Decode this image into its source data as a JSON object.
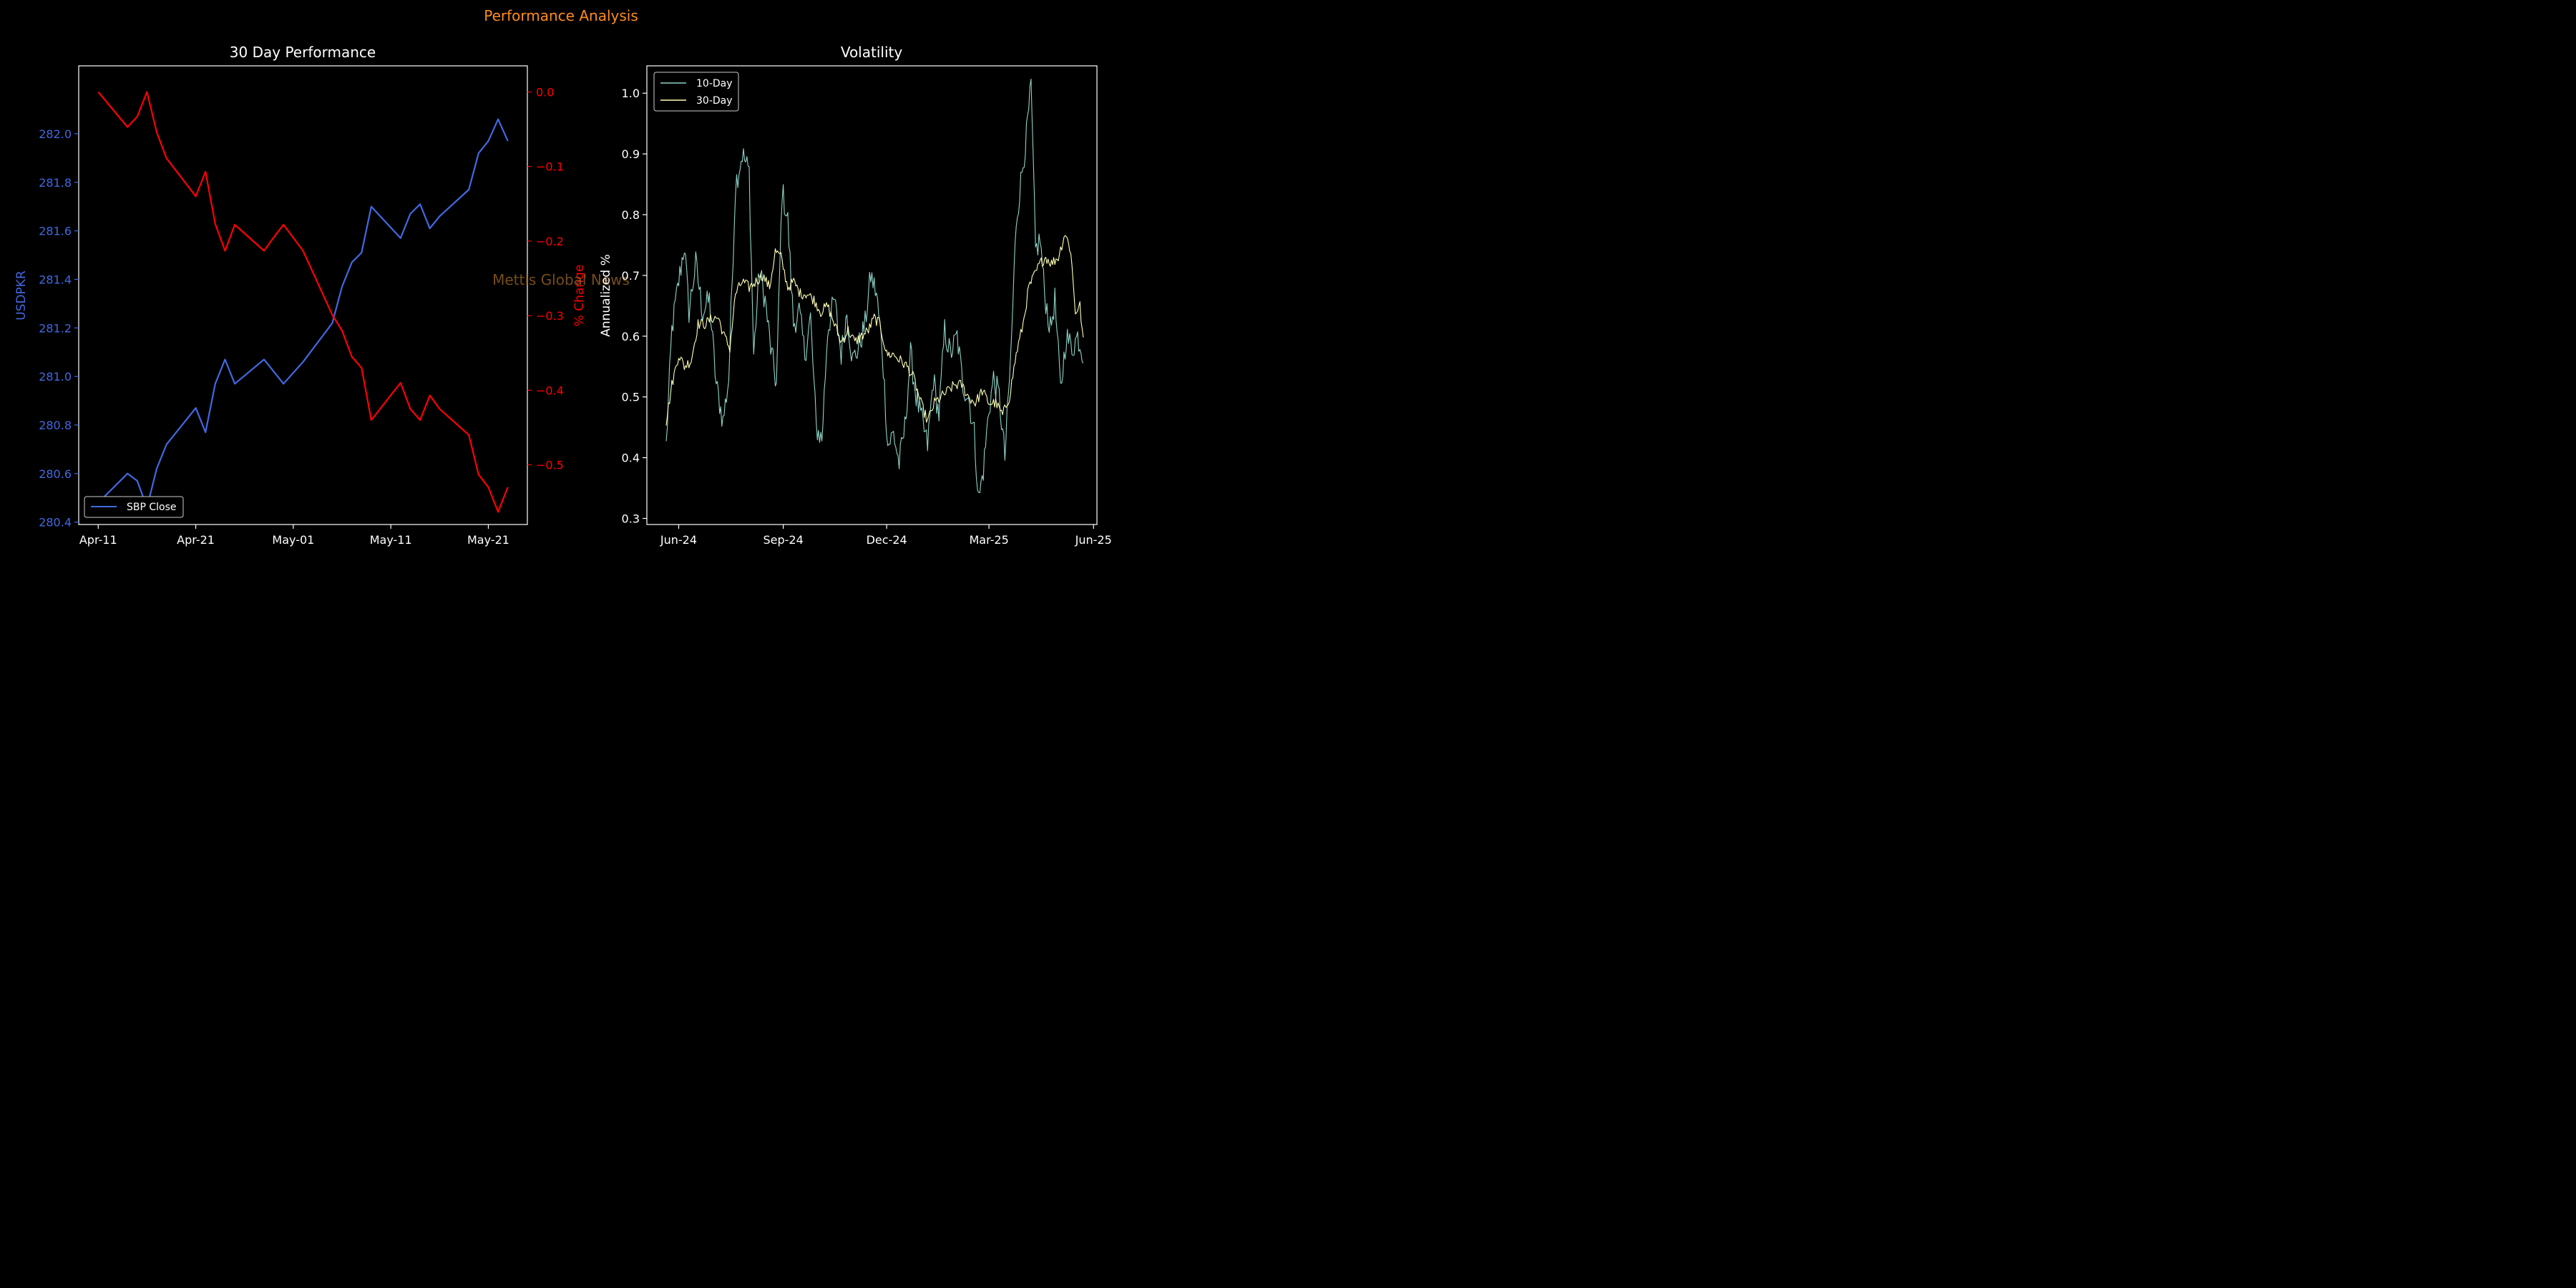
{
  "figure": {
    "suptitle": "Performance Analysis",
    "watermark": "Mettis Global News"
  },
  "chart_data": [
    {
      "type": "line",
      "title": "30 Day Performance",
      "xlabel": "",
      "ylabel": "USDPKR",
      "ylabel_right": "% Change",
      "dates": [
        "2025-04-11",
        "2025-04-14",
        "2025-04-15",
        "2025-04-16",
        "2025-04-17",
        "2025-04-18",
        "2025-04-21",
        "2025-04-22",
        "2025-04-23",
        "2025-04-24",
        "2025-04-25",
        "2025-04-28",
        "2025-04-29",
        "2025-04-30",
        "2025-05-02",
        "2025-05-05",
        "2025-05-06",
        "2025-05-07",
        "2025-05-08",
        "2025-05-09",
        "2025-05-12",
        "2025-05-13",
        "2025-05-14",
        "2025-05-15",
        "2025-05-16",
        "2025-05-19",
        "2025-05-20",
        "2025-05-21",
        "2025-05-22",
        "2025-05-23"
      ],
      "series": [
        {
          "name": "SBP Close",
          "axis": "left",
          "color": "#4169e1",
          "values": [
            280.48,
            280.6,
            280.57,
            280.46,
            280.62,
            280.72,
            280.87,
            280.77,
            280.97,
            281.07,
            280.97,
            281.07,
            281.02,
            280.97,
            281.06,
            281.22,
            281.37,
            281.47,
            281.51,
            281.7,
            281.57,
            281.67,
            281.71,
            281.61,
            281.66,
            281.77,
            281.92,
            281.97,
            282.06,
            281.97
          ]
        },
        {
          "axis": "right",
          "color": "#ff0000",
          "values": [
            0.0,
            -0.047,
            -0.033,
            0.0,
            -0.054,
            -0.089,
            -0.14,
            -0.107,
            -0.177,
            -0.213,
            -0.178,
            -0.213,
            -0.195,
            -0.178,
            -0.213,
            -0.299,
            -0.32,
            -0.355,
            -0.37,
            -0.44,
            -0.39,
            -0.425,
            -0.44,
            -0.407,
            -0.425,
            -0.46,
            -0.513,
            -0.53,
            -0.563,
            -0.53
          ]
        }
      ],
      "ylim": [
        280.39,
        282.28
      ],
      "ylim_right": [
        -0.58,
        0.035
      ],
      "yticks": [
        "280.4",
        "280.6",
        "280.8",
        "281.0",
        "281.2",
        "281.4",
        "281.6",
        "281.8",
        "282.0"
      ],
      "yticks_right": [
        "0.0",
        "−0.1",
        "−0.2",
        "−0.3",
        "−0.4",
        "−0.5"
      ],
      "xticks": [
        "Apr-11",
        "Apr-21",
        "May-01",
        "May-11",
        "May-21"
      ],
      "legend": {
        "placement": "lower-left",
        "entries": [
          "SBP Close"
        ]
      },
      "grid": false
    },
    {
      "type": "line",
      "title": "Volatility",
      "xlabel": "",
      "ylabel": "Annualized %",
      "series": [
        {
          "name": "10-Day",
          "color": "#8dd3c7"
        },
        {
          "name": "30-Day",
          "color": "#ffffb3"
        }
      ],
      "x_range": [
        "2024-05-21",
        "2025-05-23"
      ],
      "ylim": [
        0.29,
        1.045
      ],
      "yticks": [
        "0.3",
        "0.4",
        "0.5",
        "0.6",
        "0.7",
        "0.8",
        "0.9",
        "1.0"
      ],
      "xticks": [
        "Jun-24",
        "Sep-24",
        "Dec-24",
        "Mar-25",
        "Jun-25"
      ],
      "anchors_10": [
        [
          "2024-05-21",
          0.42
        ],
        [
          "2024-05-26",
          0.61
        ],
        [
          "2024-06-01",
          0.69
        ],
        [
          "2024-06-06",
          0.75
        ],
        [
          "2024-06-10",
          0.64
        ],
        [
          "2024-06-16",
          0.72
        ],
        [
          "2024-06-22",
          0.64
        ],
        [
          "2024-06-28",
          0.66
        ],
        [
          "2024-07-04",
          0.52
        ],
        [
          "2024-07-10",
          0.46
        ],
        [
          "2024-07-15",
          0.53
        ],
        [
          "2024-07-21",
          0.85
        ],
        [
          "2024-07-27",
          0.9
        ],
        [
          "2024-08-02",
          0.87
        ],
        [
          "2024-08-06",
          0.57
        ],
        [
          "2024-08-11",
          0.71
        ],
        [
          "2024-08-16",
          0.66
        ],
        [
          "2024-08-21",
          0.58
        ],
        [
          "2024-08-26",
          0.52
        ],
        [
          "2024-08-31",
          0.84
        ],
        [
          "2024-09-05",
          0.79
        ],
        [
          "2024-09-10",
          0.62
        ],
        [
          "2024-09-15",
          0.64
        ],
        [
          "2024-09-20",
          0.57
        ],
        [
          "2024-09-25",
          0.63
        ],
        [
          "2024-09-30",
          0.45
        ],
        [
          "2024-10-05",
          0.43
        ],
        [
          "2024-10-10",
          0.61
        ],
        [
          "2024-10-16",
          0.66
        ],
        [
          "2024-10-22",
          0.57
        ],
        [
          "2024-10-27",
          0.64
        ],
        [
          "2024-11-01",
          0.56
        ],
        [
          "2024-11-06",
          0.58
        ],
        [
          "2024-11-12",
          0.62
        ],
        [
          "2024-11-17",
          0.7
        ],
        [
          "2024-11-22",
          0.67
        ],
        [
          "2024-11-27",
          0.58
        ],
        [
          "2024-12-02",
          0.42
        ],
        [
          "2024-12-07",
          0.44
        ],
        [
          "2024-12-12",
          0.39
        ],
        [
          "2024-12-17",
          0.45
        ],
        [
          "2024-12-22",
          0.57
        ],
        [
          "2024-12-27",
          0.5
        ],
        [
          "2025-01-01",
          0.46
        ],
        [
          "2025-01-06",
          0.42
        ],
        [
          "2025-01-11",
          0.53
        ],
        [
          "2025-01-16",
          0.47
        ],
        [
          "2025-01-21",
          0.61
        ],
        [
          "2025-01-26",
          0.57
        ],
        [
          "2025-02-01",
          0.6
        ],
        [
          "2025-02-06",
          0.52
        ],
        [
          "2025-02-11",
          0.5
        ],
        [
          "2025-02-16",
          0.44
        ],
        [
          "2025-02-20",
          0.33
        ],
        [
          "2025-02-24",
          0.38
        ],
        [
          "2025-03-01",
          0.48
        ],
        [
          "2025-03-05",
          0.53
        ],
        [
          "2025-03-10",
          0.5
        ],
        [
          "2025-03-15",
          0.4
        ],
        [
          "2025-03-20",
          0.56
        ],
        [
          "2025-03-25",
          0.79
        ],
        [
          "2025-03-30",
          0.87
        ],
        [
          "2025-04-03",
          0.93
        ],
        [
          "2025-04-07",
          1.01
        ],
        [
          "2025-04-11",
          0.74
        ],
        [
          "2025-04-15",
          0.76
        ],
        [
          "2025-04-19",
          0.67
        ],
        [
          "2025-04-24",
          0.61
        ],
        [
          "2025-04-28",
          0.66
        ],
        [
          "2025-05-03",
          0.51
        ],
        [
          "2025-05-08",
          0.6
        ],
        [
          "2025-05-13",
          0.58
        ],
        [
          "2025-05-18",
          0.6
        ],
        [
          "2025-05-23",
          0.57
        ]
      ],
      "anchors_30": [
        [
          "2024-05-21",
          0.46
        ],
        [
          "2024-05-26",
          0.52
        ],
        [
          "2024-06-01",
          0.57
        ],
        [
          "2024-06-06",
          0.55
        ],
        [
          "2024-06-12",
          0.56
        ],
        [
          "2024-06-18",
          0.62
        ],
        [
          "2024-06-24",
          0.62
        ],
        [
          "2024-07-01",
          0.63
        ],
        [
          "2024-07-06",
          0.63
        ],
        [
          "2024-07-11",
          0.6
        ],
        [
          "2024-07-16",
          0.58
        ],
        [
          "2024-07-21",
          0.67
        ],
        [
          "2024-07-27",
          0.69
        ],
        [
          "2024-08-02",
          0.68
        ],
        [
          "2024-08-08",
          0.69
        ],
        [
          "2024-08-14",
          0.7
        ],
        [
          "2024-08-20",
          0.68
        ],
        [
          "2024-08-25",
          0.74
        ],
        [
          "2024-08-30",
          0.73
        ],
        [
          "2024-09-05",
          0.68
        ],
        [
          "2024-09-10",
          0.69
        ],
        [
          "2024-09-16",
          0.67
        ],
        [
          "2024-09-22",
          0.67
        ],
        [
          "2024-09-28",
          0.66
        ],
        [
          "2024-10-04",
          0.64
        ],
        [
          "2024-10-10",
          0.65
        ],
        [
          "2024-10-16",
          0.62
        ],
        [
          "2024-10-22",
          0.59
        ],
        [
          "2024-10-28",
          0.61
        ],
        [
          "2024-11-03",
          0.59
        ],
        [
          "2024-11-09",
          0.6
        ],
        [
          "2024-11-15",
          0.61
        ],
        [
          "2024-11-20",
          0.63
        ],
        [
          "2024-11-25",
          0.62
        ],
        [
          "2024-12-01",
          0.57
        ],
        [
          "2024-12-07",
          0.57
        ],
        [
          "2024-12-13",
          0.56
        ],
        [
          "2024-12-19",
          0.55
        ],
        [
          "2024-12-25",
          0.53
        ],
        [
          "2024-12-31",
          0.49
        ],
        [
          "2025-01-06",
          0.46
        ],
        [
          "2025-01-12",
          0.49
        ],
        [
          "2025-01-18",
          0.5
        ],
        [
          "2025-01-24",
          0.51
        ],
        [
          "2025-01-30",
          0.52
        ],
        [
          "2025-02-05",
          0.52
        ],
        [
          "2025-02-11",
          0.5
        ],
        [
          "2025-02-17",
          0.49
        ],
        [
          "2025-02-23",
          0.51
        ],
        [
          "2025-03-01",
          0.49
        ],
        [
          "2025-03-07",
          0.49
        ],
        [
          "2025-03-13",
          0.47
        ],
        [
          "2025-03-19",
          0.5
        ],
        [
          "2025-03-25",
          0.57
        ],
        [
          "2025-03-31",
          0.62
        ],
        [
          "2025-04-05",
          0.68
        ],
        [
          "2025-04-10",
          0.7
        ],
        [
          "2025-04-15",
          0.72
        ],
        [
          "2025-04-20",
          0.73
        ],
        [
          "2025-04-25",
          0.72
        ],
        [
          "2025-05-01",
          0.73
        ],
        [
          "2025-05-07",
          0.77
        ],
        [
          "2025-05-12",
          0.74
        ],
        [
          "2025-05-16",
          0.64
        ],
        [
          "2025-05-20",
          0.65
        ],
        [
          "2025-05-23",
          0.59
        ]
      ],
      "legend": {
        "placement": "upper-left",
        "entries": [
          "10-Day",
          "30-Day"
        ]
      },
      "grid": false
    }
  ]
}
